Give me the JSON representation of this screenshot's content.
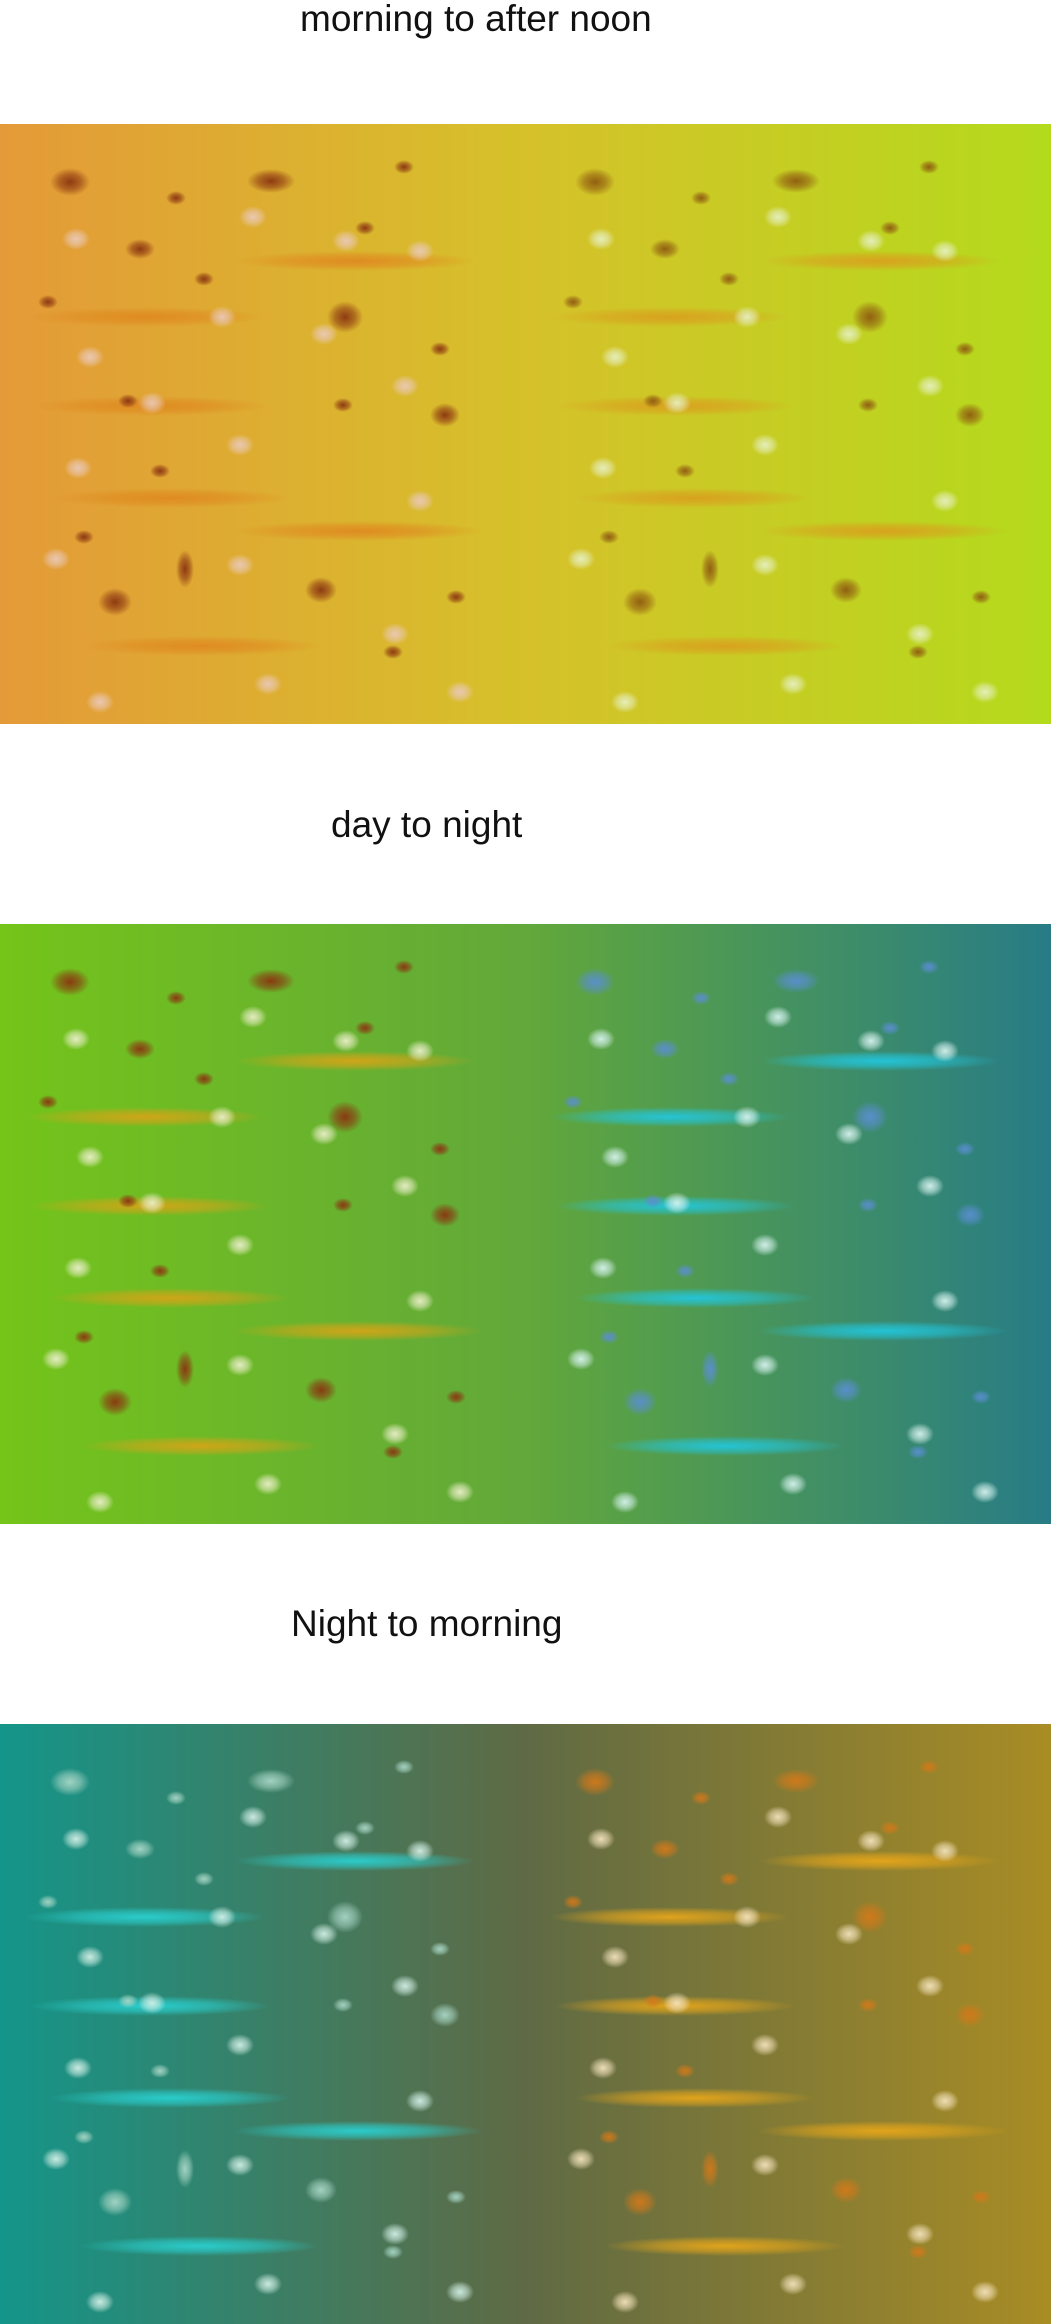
{
  "captions": [
    "morning to after noon",
    "day to night",
    "Night to morning"
  ],
  "gradients": [
    {
      "from": "#e49a38",
      "mid": "#d6c12a",
      "to": "#b4da1c",
      "left_spot": "#8a3410",
      "left_streak": "#df8a20",
      "left_dot": "#eac9b8",
      "right_spot": "#8f5a10",
      "right_streak": "#d9a01e",
      "right_dot": "#e6efc0"
    },
    {
      "from": "#74c41a",
      "mid": "#62a83a",
      "to": "#277c86",
      "left_spot": "#8a3410",
      "left_streak": "#d4a418",
      "left_dot": "#eaeec8",
      "right_spot": "#5a8ed0",
      "right_streak": "#22c6dc",
      "right_dot": "#d6f2ee"
    },
    {
      "from": "#14958a",
      "mid": "#5f6a44",
      "to": "#a98c24",
      "left_spot": "#a8d6c6",
      "left_streak": "#2ad0d0",
      "left_dot": "#d2efe6",
      "right_spot": "#d2791a",
      "right_streak": "#e6a61a",
      "right_dot": "#f3e2bc"
    }
  ]
}
